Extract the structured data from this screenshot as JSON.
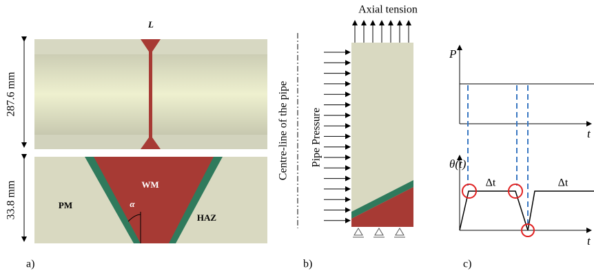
{
  "panel_a": {
    "label": "a)",
    "weld_label": "L",
    "top_dimension": "287.6 mm",
    "bottom_dimension": "33.8 mm",
    "weld_metal": "WM",
    "parent_metal": "PM",
    "heat_affected_zone": "HAZ",
    "bevel_angle": "α"
  },
  "panel_b": {
    "label": "b)",
    "top_load": "Axial tension",
    "centre_line": "Centre-line of the pipe",
    "side_load": "Pipe Pressure"
  },
  "panel_c": {
    "label": "c)",
    "top_y_axis": "P",
    "top_x_axis": "t",
    "bottom_y_axis": "θ(t)",
    "bottom_x_axis": "t",
    "intervals": [
      "Δt",
      "Δt"
    ]
  }
}
